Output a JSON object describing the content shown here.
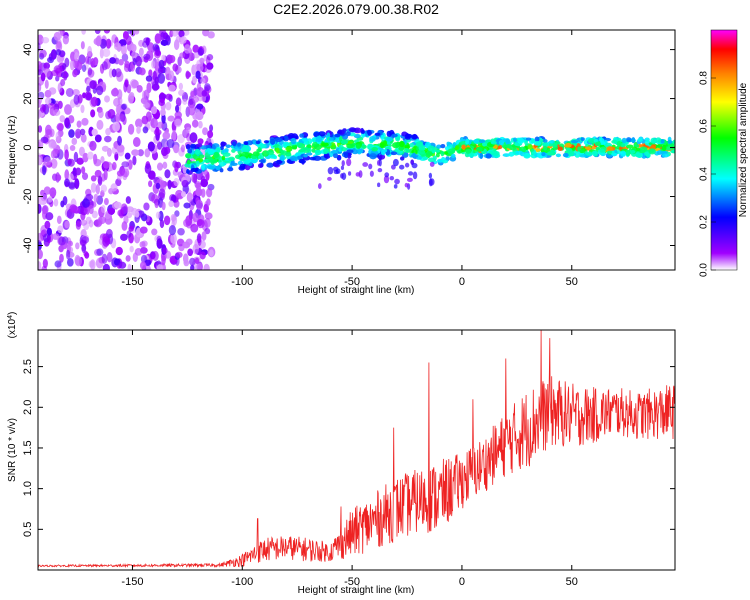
{
  "figure_title": "C2E2.2026.079.00.38.R02",
  "chart_data": [
    {
      "type": "heatmap",
      "title": "C2E2.2026.079.00.38.R02",
      "xlabel": "Height of straight line (km)",
      "ylabel": "Frequency (Hz)",
      "xlim": [
        -193,
        97
      ],
      "ylim": [
        -50,
        48
      ],
      "x_ticks": [
        -150,
        -100,
        -50,
        0,
        50
      ],
      "y_ticks": [
        -40,
        -20,
        0,
        20,
        40
      ],
      "colorbar": {
        "label": "Normalized spectral amplitude",
        "range": [
          0,
          1
        ],
        "ticks": [
          0.0,
          0.2,
          0.4,
          0.6,
          0.8
        ],
        "tick_labels": [
          "0.0",
          "0.2",
          "0.4",
          "0.6",
          "0.8"
        ],
        "colormap": [
          "#ffffff",
          "#a000ff",
          "#0000ff",
          "#00ffff",
          "#00ff00",
          "#ffff00",
          "#ff8000",
          "#ff0000",
          "#ff00ff"
        ]
      },
      "regions": [
        {
          "name": "diffuse noise",
          "x_range": [
            -193,
            -114
          ],
          "freq_range": [
            -50,
            48
          ],
          "amplitude": 0.15
        },
        {
          "name": "signal band",
          "x_range": [
            -125,
            97
          ],
          "freq_center": [
            -5,
            -4,
            -2,
            0,
            2,
            1,
            -1,
            -3,
            0,
            0,
            0,
            0,
            0
          ],
          "freq_center_x": [
            -125,
            -110,
            -90,
            -70,
            -50,
            -30,
            -20,
            -10,
            0,
            20,
            40,
            70,
            97
          ],
          "half_width_hz": 3.5,
          "amplitude_range": [
            0.3,
            0.9
          ]
        }
      ]
    },
    {
      "type": "line",
      "title": "",
      "xlabel": "Height of straight line (km)",
      "ylabel": "SNR (10 * v/v)",
      "scale_label": "(x10",
      "scale_exponent": "4",
      "scale_close": ")",
      "xlim": [
        -193,
        97
      ],
      "ylim": [
        0,
        2.95
      ],
      "x_ticks": [
        -150,
        -100,
        -50,
        0,
        50
      ],
      "y_ticks": [
        0.5,
        1.0,
        1.5,
        2.0,
        2.5
      ],
      "y_tick_labels": [
        "0.5",
        "1.0",
        "1.5",
        "2.0",
        "2.5"
      ],
      "series": [
        {
          "name": "SNR",
          "color": "#ee2222",
          "envelope_x": [
            -193,
            -110,
            -100,
            -90,
            -80,
            -70,
            -60,
            -50,
            -40,
            -30,
            -20,
            -10,
            0,
            10,
            20,
            30,
            40,
            50,
            60,
            70,
            80,
            97
          ],
          "envelope_mean": [
            0.05,
            0.06,
            0.12,
            0.25,
            0.28,
            0.25,
            0.22,
            0.45,
            0.6,
            0.75,
            0.85,
            0.9,
            1.1,
            1.3,
            1.55,
            1.75,
            1.95,
            1.9,
            1.9,
            1.95,
            1.9,
            1.95
          ],
          "envelope_spread": [
            0.01,
            0.02,
            0.08,
            0.15,
            0.15,
            0.15,
            0.12,
            0.3,
            0.35,
            0.4,
            0.4,
            0.45,
            0.35,
            0.35,
            0.4,
            0.5,
            0.45,
            0.4,
            0.35,
            0.3,
            0.3,
            0.35
          ],
          "peaks": [
            {
              "x": -93,
              "y": 0.63
            },
            {
              "x": -55,
              "y": 0.78
            },
            {
              "x": -31,
              "y": 1.75
            },
            {
              "x": -15,
              "y": 2.55
            },
            {
              "x": 5,
              "y": 2.1
            },
            {
              "x": 20,
              "y": 2.6
            },
            {
              "x": 36,
              "y": 2.95
            },
            {
              "x": 40,
              "y": 2.85
            }
          ]
        }
      ]
    }
  ]
}
